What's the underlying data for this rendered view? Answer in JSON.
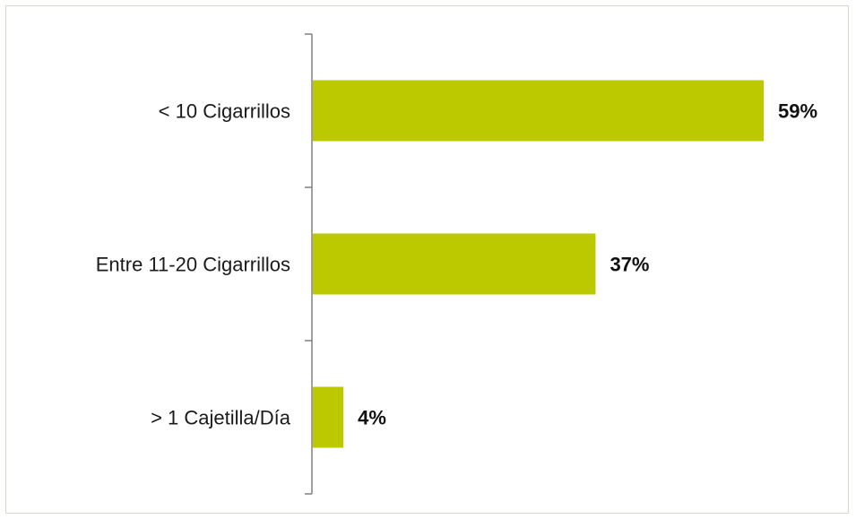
{
  "chart_data": {
    "type": "bar",
    "orientation": "horizontal",
    "categories": [
      "< 10 Cigarrillos",
      "Entre 11-20 Cigarrillos",
      "> 1 Cajetilla/Día"
    ],
    "values": [
      59,
      37,
      4
    ],
    "value_labels": [
      "59%",
      "37%",
      "4%"
    ],
    "unit": "%",
    "xlim": [
      0,
      70
    ],
    "grid": false,
    "legend": "none",
    "colors": {
      "bar": "#bcc800",
      "axis": "#808080",
      "frame": "#d8d8c8"
    }
  }
}
